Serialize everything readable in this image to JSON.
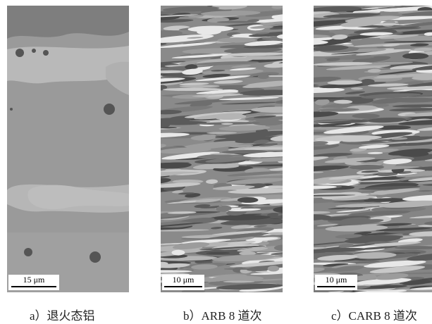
{
  "panels": [
    {
      "scale_bar": "15 μm",
      "caption": "a）退火态铝"
    },
    {
      "scale_bar": "10 μm",
      "caption": "b）ARB 8 道次"
    },
    {
      "scale_bar": "10 μm",
      "caption": "c）CARB 8 道次"
    }
  ]
}
